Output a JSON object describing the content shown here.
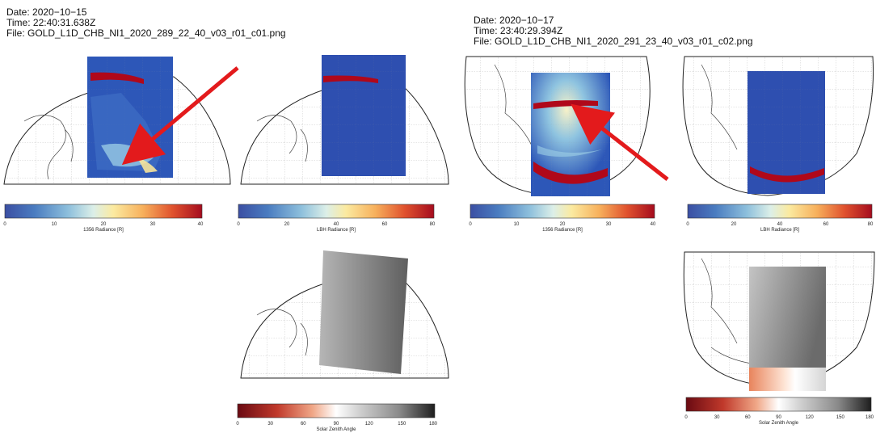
{
  "left_panel": {
    "date": "Date: 2020−10−15",
    "time": "Time: 22:40:31.638Z",
    "file": "File: GOLD_L1D_CHB_NI1_2020_289_22_40_v03_r01_c01.png",
    "colorbars": {
      "c1356": {
        "label": "1356 Radiance [R]",
        "ticks": [
          "0",
          "10",
          "20",
          "30",
          "40"
        ]
      },
      "lbh": {
        "label": "LBH Radiance [R]",
        "ticks": [
          "0",
          "20",
          "40",
          "60",
          "80"
        ]
      },
      "sza": {
        "label": "Solar Zenith Angle",
        "ticks": [
          "0",
          "30",
          "60",
          "90",
          "120",
          "150",
          "180"
        ]
      }
    }
  },
  "right_panel": {
    "date": "Date: 2020−10−17",
    "time": "Time: 23:40:29.394Z",
    "file": "File: GOLD_L1D_CHB_NI1_2020_291_23_40_v03_r01_c02.png",
    "colorbars": {
      "c1356": {
        "label": "1356 Radiance [R]",
        "ticks": [
          "0",
          "10",
          "20",
          "30",
          "40"
        ]
      },
      "lbh": {
        "label": "LBH Radiance [R]",
        "ticks": [
          "0",
          "20",
          "40",
          "60",
          "80"
        ]
      },
      "sza": {
        "label": "Solar Zenith Angle",
        "ticks": [
          "0",
          "30",
          "60",
          "90",
          "120",
          "150",
          "180"
        ]
      }
    }
  },
  "colors": {
    "arrow": "#e31a1c",
    "band_red": "#b0081a",
    "field_blue": "#2d57b8"
  }
}
